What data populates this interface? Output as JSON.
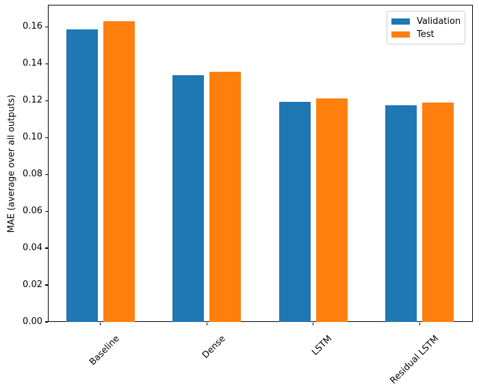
{
  "chart_data": {
    "type": "bar",
    "title": "",
    "categories": [
      "Baseline",
      "Dense",
      "LSTM",
      "Residual LSTM"
    ],
    "series": [
      {
        "name": "Validation",
        "color": "#1f77b4",
        "values": [
          0.1585,
          0.1337,
          0.1194,
          0.1175
        ]
      },
      {
        "name": "Test",
        "color": "#ff7f0e",
        "values": [
          0.1632,
          0.1356,
          0.1211,
          0.1189
        ]
      }
    ],
    "xlabel": "",
    "ylabel": "MAE (average over all outputs)",
    "ylim": [
      0,
      0.172
    ],
    "yticks": {
      "values": [
        0.0,
        0.02,
        0.04,
        0.06,
        0.08,
        0.1,
        0.12,
        0.14,
        0.16
      ],
      "labels": [
        "0.00",
        "0.02",
        "0.04",
        "0.06",
        "0.08",
        "0.10",
        "0.12",
        "0.14",
        "0.16"
      ]
    },
    "xtick_rotation": 45,
    "grid": false,
    "legend_position": "upper right",
    "background_color": "#ffffff",
    "spine_color": "#000000"
  }
}
